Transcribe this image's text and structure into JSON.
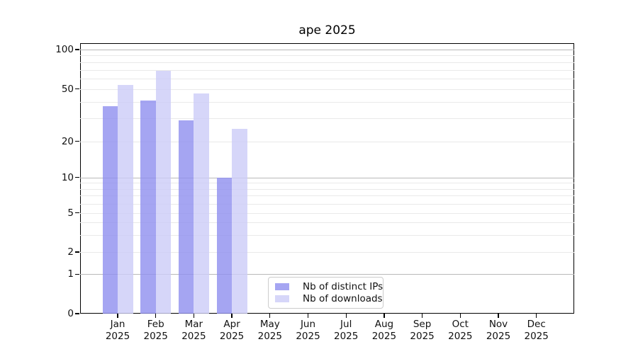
{
  "chart_data": {
    "type": "bar",
    "title": "ape 2025",
    "scale": "symlog",
    "grid": true,
    "ylim": [
      0,
      100
    ],
    "y_ticks": [
      0,
      1,
      2,
      5,
      10,
      20,
      50,
      100
    ],
    "legend_position": "lower-center",
    "categories": [
      {
        "month": "Jan",
        "year": "2025"
      },
      {
        "month": "Feb",
        "year": "2025"
      },
      {
        "month": "Mar",
        "year": "2025"
      },
      {
        "month": "Apr",
        "year": "2025"
      },
      {
        "month": "May",
        "year": "2025"
      },
      {
        "month": "Jun",
        "year": "2025"
      },
      {
        "month": "Jul",
        "year": "2025"
      },
      {
        "month": "Aug",
        "year": "2025"
      },
      {
        "month": "Sep",
        "year": "2025"
      },
      {
        "month": "Oct",
        "year": "2025"
      },
      {
        "month": "Nov",
        "year": "2025"
      },
      {
        "month": "Dec",
        "year": "2025"
      }
    ],
    "series": [
      {
        "name": "Nb of distinct IPs",
        "color": "#8f8fef",
        "values": [
          37,
          41,
          29,
          10,
          0,
          0,
          0,
          0,
          0,
          0,
          0,
          0
        ]
      },
      {
        "name": "Nb of downloads",
        "color": "#ccccf8",
        "values": [
          54,
          69,
          46,
          25,
          0,
          0,
          0,
          0,
          0,
          0,
          0,
          0
        ]
      }
    ],
    "grid_major_color": "#b9b9b9",
    "grid_minor_color": "#e9e9e9"
  }
}
